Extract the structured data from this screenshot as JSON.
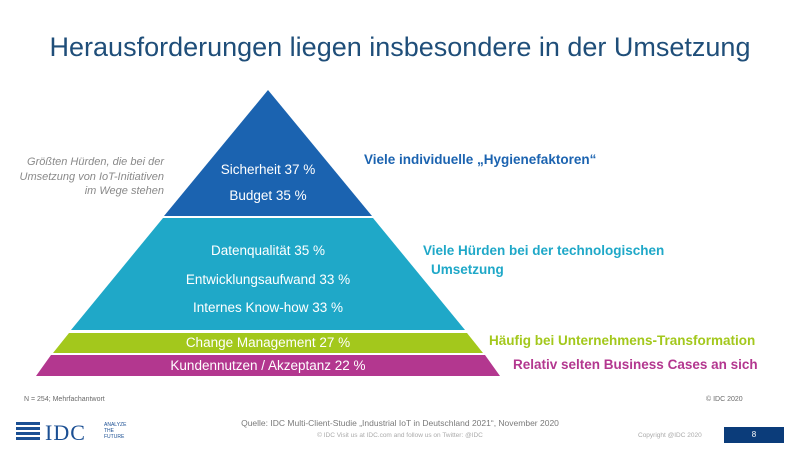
{
  "title": "Herausforderungen liegen insbesondere in der Umsetzung",
  "side_note": "Größten Hürden, die bei der Umsetzung von IoT-Initiativen im Wege stehen",
  "pyramid": {
    "top": {
      "color": "#1b63b0",
      "items": [
        "Sicherheit 37 %",
        "Budget 35 %"
      ],
      "annotation": "Viele individuelle „Hygienefaktoren“",
      "annotation_color": "#1b63b0"
    },
    "middle": {
      "color": "#1fa8c8",
      "items": [
        "Datenqualität 35 %",
        "Entwicklungsaufwand 33 %",
        "Internes Know-how 33 %"
      ],
      "annotation_line1": "Viele Hürden bei der technologischen",
      "annotation_line2": "Umsetzung",
      "annotation_color": "#1fa8c8"
    },
    "band1": {
      "color": "#a3c81c",
      "label": "Change Management 27 %",
      "annotation": "Häufig bei Unternehmens-Transformation",
      "annotation_color": "#a3c81c"
    },
    "band2": {
      "color": "#b3378f",
      "label": "Kundennutzen / Akzeptanz 22 %",
      "annotation": "Relativ selten Business Cases an sich",
      "annotation_color": "#b3378f"
    }
  },
  "footer": {
    "sample_note": "N = 254; Mehrfachantwort",
    "idc_copyright_small": "© IDC 2020",
    "source": "Quelle: IDC Multi-Client-Studie „Industrial IoT in Deutschland 2021“, November 2020",
    "footer_line": "© IDC   Visit us at IDC.com and follow us on Twitter: @IDC",
    "copyright": "Copyright @IDC 2020",
    "page_number": "8"
  },
  "logo": {
    "text": "IDC",
    "tagline_1": "ANALYZE",
    "tagline_2": "THE",
    "tagline_3": "FUTURE",
    "icon": "globe-icon",
    "color": "#1b4f93"
  }
}
